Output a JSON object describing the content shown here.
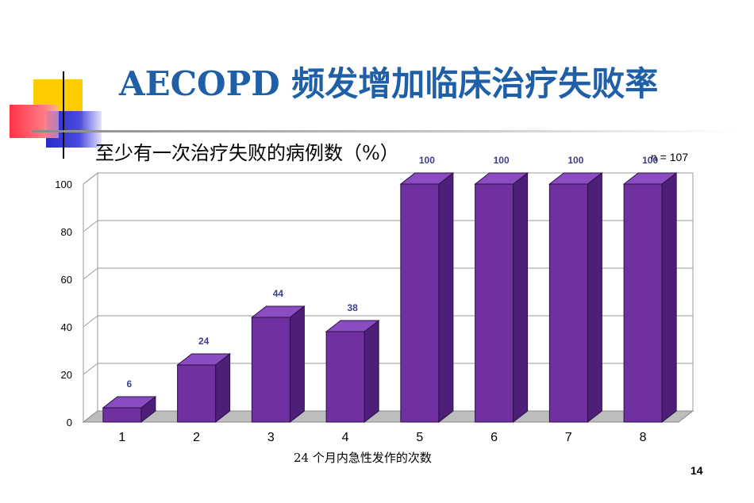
{
  "slide": {
    "title": "AECOPD 频发增加临床治疗失败率",
    "page_number": "14"
  },
  "colors": {
    "bar_front": "#7030a0",
    "bar_top": "#8a4cc0",
    "bar_side": "#4e1f78",
    "title": "#1f5fa8",
    "value_label": "#3d3d8f"
  },
  "chart_data": {
    "type": "bar",
    "ylabel": "至少有一次治疗失败的病例数（%）",
    "xlabel": "24 个月内急性发作的次数",
    "annotation": "n = 107",
    "categories": [
      "1",
      "2",
      "3",
      "4",
      "5",
      "6",
      "7",
      "8"
    ],
    "values": [
      6,
      24,
      44,
      38,
      100,
      100,
      100,
      100
    ],
    "ylim": [
      0,
      100
    ],
    "yticks": [
      "0",
      "20",
      "40",
      "60",
      "80",
      "100"
    ],
    "grid": true,
    "legend": "none"
  }
}
